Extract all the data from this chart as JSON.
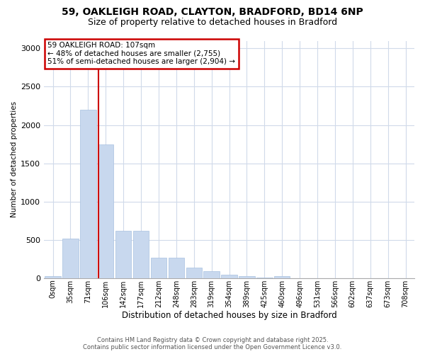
{
  "title_line1": "59, OAKLEIGH ROAD, CLAYTON, BRADFORD, BD14 6NP",
  "title_line2": "Size of property relative to detached houses in Bradford",
  "xlabel": "Distribution of detached houses by size in Bradford",
  "ylabel": "Number of detached properties",
  "categories": [
    "0sqm",
    "35sqm",
    "71sqm",
    "106sqm",
    "142sqm",
    "177sqm",
    "212sqm",
    "248sqm",
    "283sqm",
    "319sqm",
    "354sqm",
    "389sqm",
    "425sqm",
    "460sqm",
    "496sqm",
    "531sqm",
    "566sqm",
    "602sqm",
    "637sqm",
    "673sqm",
    "708sqm"
  ],
  "values": [
    28,
    520,
    2200,
    1750,
    625,
    625,
    270,
    270,
    140,
    95,
    50,
    28,
    12,
    28,
    4,
    3,
    0,
    0,
    0,
    0,
    0
  ],
  "bar_color": "#c8d8ee",
  "bar_edge_color": "#a8c0e0",
  "grid_color": "#d0daea",
  "red_line_x": 2.575,
  "annotation_box_text": "59 OAKLEIGH ROAD: 107sqm\n← 48% of detached houses are smaller (2,755)\n51% of semi-detached houses are larger (2,904) →",
  "annotation_box_color": "#cc0000",
  "ylim": [
    0,
    3100
  ],
  "yticks": [
    0,
    500,
    1000,
    1500,
    2000,
    2500,
    3000
  ],
  "bg_color": "#ffffff",
  "footer_line1": "Contains HM Land Registry data © Crown copyright and database right 2025.",
  "footer_line2": "Contains public sector information licensed under the Open Government Licence v3.0."
}
